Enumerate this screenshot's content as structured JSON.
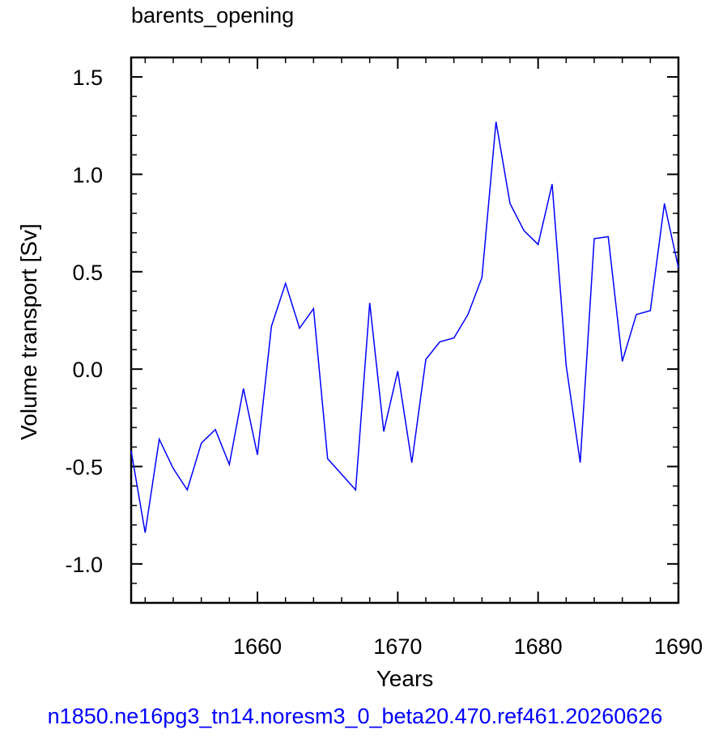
{
  "chart_data": {
    "type": "line",
    "title": "barents_opening",
    "xlabel": "Years",
    "ylabel": "Volume transport [Sv]",
    "xlim": [
      1651,
      1690
    ],
    "ylim": [
      -1.2,
      1.6
    ],
    "x_ticks": [
      1660,
      1670,
      1680,
      1690
    ],
    "x_tick_labels": [
      "1660",
      "1670",
      "1680",
      "1690"
    ],
    "y_ticks": [
      -1.0,
      -0.5,
      0.0,
      0.5,
      1.0,
      1.5
    ],
    "y_tick_labels": [
      "-1.0",
      "-0.5",
      "0.0",
      "0.5",
      "1.0",
      "1.5"
    ],
    "grid": false,
    "series": [
      {
        "color": "#0000ff",
        "x": [
          1651,
          1652,
          1653,
          1654,
          1655,
          1656,
          1657,
          1658,
          1659,
          1660,
          1661,
          1662,
          1663,
          1664,
          1665,
          1666,
          1667,
          1668,
          1669,
          1670,
          1671,
          1672,
          1673,
          1674,
          1675,
          1676,
          1677,
          1678,
          1679,
          1680,
          1681,
          1682,
          1683,
          1684,
          1685,
          1686,
          1687,
          1688,
          1689,
          1690
        ],
        "values": [
          -0.42,
          -0.84,
          -0.36,
          -0.51,
          -0.62,
          -0.38,
          -0.31,
          -0.49,
          -0.1,
          -0.44,
          0.22,
          0.44,
          0.21,
          0.31,
          -0.46,
          -0.54,
          -0.62,
          0.34,
          -0.32,
          -0.01,
          -0.48,
          0.05,
          0.14,
          0.16,
          0.28,
          0.47,
          1.27,
          0.85,
          0.71,
          0.64,
          0.95,
          0.02,
          -0.48,
          0.67,
          0.68,
          0.04,
          0.28,
          0.3,
          0.85,
          0.52
        ]
      }
    ]
  },
  "footer": "n1850.ne16pg3_tn14.noresm3_0_beta20.470.ref461.20260626"
}
